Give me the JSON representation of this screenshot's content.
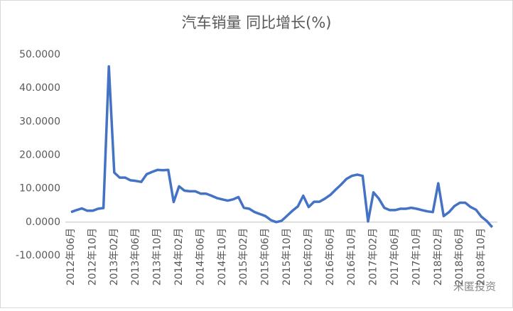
{
  "chart_data": {
    "type": "line",
    "title": "汽车销量 同比增长(%)",
    "categories": [
      "2012年06月",
      null,
      null,
      null,
      "2012年10月",
      null,
      null,
      null,
      "2013年02月",
      null,
      null,
      null,
      "2013年06月",
      null,
      null,
      null,
      "2013年10月",
      null,
      null,
      null,
      "2014年02月",
      null,
      null,
      null,
      "2014年06月",
      null,
      null,
      null,
      "2014年10月",
      null,
      null,
      null,
      "2015年02月",
      null,
      null,
      null,
      "2015年06月",
      null,
      null,
      null,
      "2015年10月",
      null,
      null,
      null,
      "2016年02月",
      null,
      null,
      null,
      "2016年06月",
      null,
      null,
      null,
      "2016年10月",
      null,
      null,
      null,
      "2017年02月",
      null,
      null,
      null,
      "2017年06月",
      null,
      null,
      null,
      "2017年10月",
      null,
      null,
      null,
      "2018年02月",
      null,
      null,
      null,
      "2018年06月",
      null,
      null,
      null,
      "2018年10月",
      null,
      null
    ],
    "values": [
      3.0,
      3.6,
      4.1,
      3.4,
      3.4,
      4.0,
      4.2,
      46.5,
      14.8,
      13.3,
      13.3,
      12.5,
      12.3,
      12.0,
      14.3,
      15.0,
      15.6,
      15.5,
      15.6,
      6.0,
      10.7,
      9.4,
      9.2,
      9.2,
      8.5,
      8.5,
      7.9,
      7.2,
      6.8,
      6.4,
      6.8,
      7.5,
      4.3,
      4.0,
      3.0,
      2.4,
      1.8,
      0.6,
      0.0,
      0.4,
      1.9,
      3.4,
      4.7,
      7.9,
      4.5,
      6.1,
      6.1,
      7.0,
      8.1,
      9.7,
      11.2,
      12.9,
      13.8,
      14.2,
      13.8,
      0.2,
      8.9,
      7.0,
      4.3,
      3.6,
      3.6,
      4.0,
      4.0,
      4.3,
      4.0,
      3.6,
      3.2,
      3.0,
      11.6,
      1.8,
      3.0,
      4.8,
      5.8,
      5.8,
      4.5,
      3.7,
      1.6,
      0.3,
      -1.5
    ],
    "color": "#4472c4",
    "ylim": [
      -10,
      50
    ],
    "yticks": [
      {
        "value": -10,
        "label": "-10.0000"
      },
      {
        "value": 0,
        "label": "0.0000"
      },
      {
        "value": 10,
        "label": "10.0000"
      },
      {
        "value": 20,
        "label": "20.0000"
      },
      {
        "value": 30,
        "label": "30.0000"
      },
      {
        "value": 40,
        "label": "40.0000"
      },
      {
        "value": 50,
        "label": "50.0000"
      }
    ],
    "grid": false
  },
  "watermark": "米匿投资"
}
